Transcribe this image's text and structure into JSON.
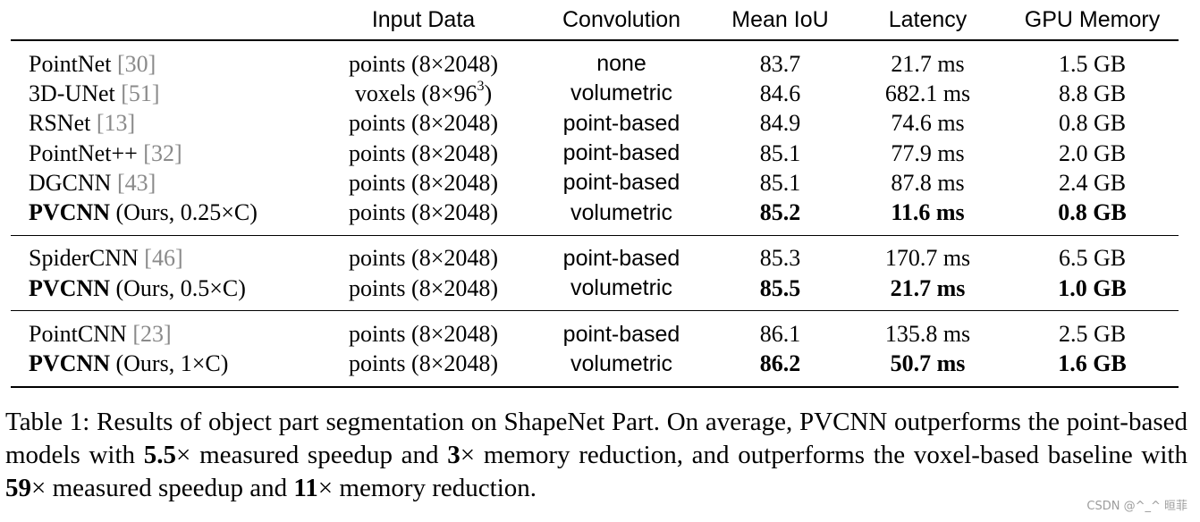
{
  "table": {
    "headers": [
      "",
      "Input Data",
      "Convolution",
      "Mean IoU",
      "Latency",
      "GPU Memory"
    ],
    "groups": [
      [
        {
          "name": "PointNet",
          "cite": "[30]",
          "input": "points (8×2048)",
          "conv": "none",
          "miou": "83.7",
          "latency": "21.7 ms",
          "mem": "1.5 GB"
        },
        {
          "name": "3D-UNet",
          "cite": "[51]",
          "input_pre": "voxels (8×96",
          "input_sup": "3",
          "input_post": ")",
          "conv": "volumetric",
          "miou": "84.6",
          "latency": "682.1 ms",
          "mem": "8.8 GB"
        },
        {
          "name": "RSNet",
          "cite": "[13]",
          "input": "points (8×2048)",
          "conv": "point-based",
          "miou": "84.9",
          "latency": "74.6 ms",
          "mem": "0.8 GB"
        },
        {
          "name": "PointNet++",
          "cite": "[32]",
          "input": "points (8×2048)",
          "conv": "point-based",
          "miou": "85.1",
          "latency": "77.9 ms",
          "mem": "2.0 GB"
        },
        {
          "name": "DGCNN",
          "cite": "[43]",
          "input": "points (8×2048)",
          "conv": "point-based",
          "miou": "85.1",
          "latency": "87.8 ms",
          "mem": "2.4 GB"
        },
        {
          "name": "PVCNN",
          "suffix": "(Ours, 0.25×C)",
          "input": "points (8×2048)",
          "conv": "volumetric",
          "miou": "85.2",
          "latency": "11.6 ms",
          "mem": "0.8 GB"
        }
      ],
      [
        {
          "name": "SpiderCNN",
          "cite": "[46]",
          "input": "points (8×2048)",
          "conv": "point-based",
          "miou": "85.3",
          "latency": "170.7 ms",
          "mem": "6.5 GB"
        },
        {
          "name": "PVCNN",
          "suffix": "(Ours, 0.5×C)",
          "input": "points (8×2048)",
          "conv": "volumetric",
          "miou": "85.5",
          "latency": "21.7 ms",
          "mem": "1.0 GB"
        }
      ],
      [
        {
          "name": "PointCNN",
          "cite": "[23]",
          "input": "points (8×2048)",
          "conv": "point-based",
          "miou": "86.1",
          "latency": "135.8 ms",
          "mem": "2.5 GB"
        },
        {
          "name": "PVCNN",
          "suffix": "(Ours, 1×C)",
          "input": "points (8×2048)",
          "conv": "volumetric",
          "miou": "86.2",
          "latency": "50.7 ms",
          "mem": "1.6 GB"
        }
      ]
    ]
  },
  "caption": {
    "p1": "Table 1: Results of object part segmentation on ShapeNet Part. On average, PVCNN outperforms the point-based models with ",
    "b1": "5.5",
    "p2": "× measured speedup and ",
    "b2": "3",
    "p3": "× memory reduction, and outperforms the voxel-based baseline with ",
    "b3": "59",
    "p4": "× measured speedup and ",
    "b4": "11",
    "p5": "× memory reduction."
  },
  "watermark": "CSDN @^_^ 晅菲"
}
